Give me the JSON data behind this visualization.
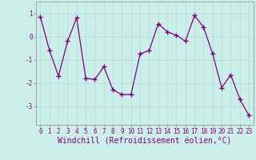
{
  "x": [
    0,
    1,
    2,
    3,
    4,
    5,
    6,
    7,
    8,
    9,
    10,
    11,
    12,
    13,
    14,
    15,
    16,
    17,
    18,
    19,
    20,
    21,
    22,
    23
  ],
  "y": [
    0.85,
    -0.6,
    -1.7,
    -0.2,
    0.8,
    -1.8,
    -1.85,
    -1.3,
    -2.3,
    -2.5,
    -2.5,
    -0.75,
    -0.6,
    0.55,
    0.2,
    0.05,
    -0.2,
    0.9,
    0.4,
    -0.75,
    -2.2,
    -1.65,
    -2.7,
    -3.4
  ],
  "line_color": "#800080",
  "marker_color": "#800080",
  "bg_color": "#cceee8",
  "grid_color": "#aadddd",
  "xlabel": "Windchill (Refroidissement éolien,°C)",
  "ylim": [
    -3.8,
    1.5
  ],
  "xlim": [
    -0.5,
    23.5
  ],
  "yticks": [
    -3,
    -2,
    -1,
    0,
    1
  ],
  "xtick_labels": [
    "0",
    "1",
    "2",
    "3",
    "4",
    "5",
    "6",
    "7",
    "8",
    "9",
    "10",
    "11",
    "12",
    "13",
    "14",
    "15",
    "16",
    "17",
    "18",
    "19",
    "20",
    "21",
    "22",
    "23"
  ],
  "font_color": "#800080",
  "tick_fontsize": 5.5,
  "xlabel_fontsize": 7.0
}
